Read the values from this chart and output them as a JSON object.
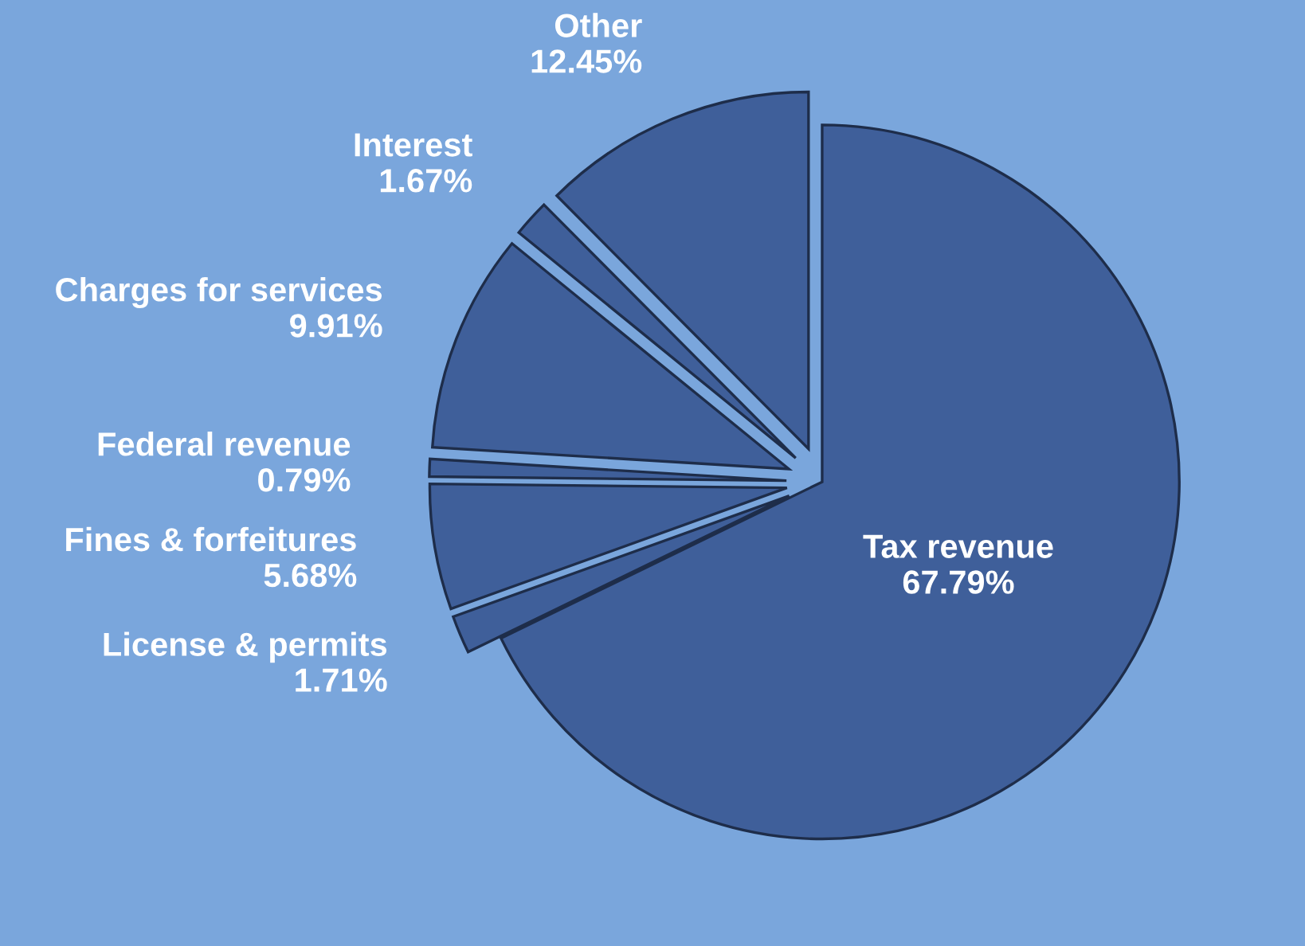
{
  "chart_data": {
    "type": "pie",
    "categories": [
      "Tax revenue",
      "License & permits",
      "Fines & forfeitures",
      "Federal revenue",
      "Charges for services",
      "Interest",
      "Other"
    ],
    "values": [
      67.79,
      1.71,
      5.68,
      0.79,
      9.91,
      1.67,
      12.45
    ],
    "value_labels": [
      "67.79%",
      "1.71%",
      "5.68%",
      "0.79%",
      "9.91%",
      "1.67%",
      "12.45%"
    ],
    "colors": [
      "#3f5f9a",
      "#3f5f9a",
      "#3f5f9a",
      "#3f5f9a",
      "#3f5f9a",
      "#3f5f9a",
      "#3f5f9a"
    ]
  }
}
